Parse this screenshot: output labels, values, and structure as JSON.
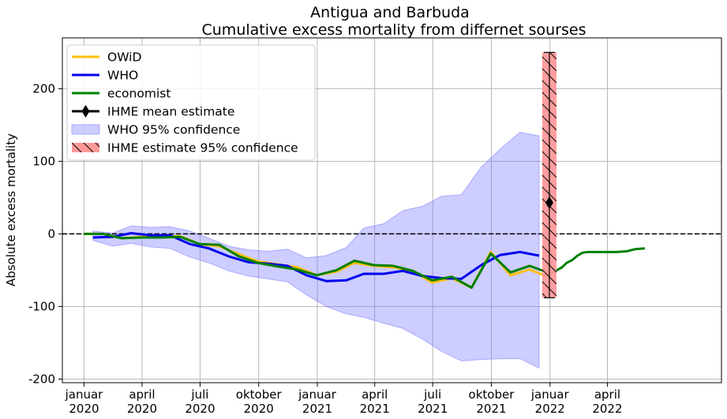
{
  "chart_data": {
    "type": "line",
    "title": "Antigua and Barbuda",
    "subtitle": "Cumulative excess mortality from differnet sourses",
    "ylabel": "Absolute excess mortality",
    "xlabel": "",
    "ylim": [
      -205,
      270
    ],
    "xlim": [
      "2019-11-28",
      "2022-09-27"
    ],
    "grid": true,
    "legend_position": "top-left",
    "x_ticks": [
      {
        "date": "2020-01-01",
        "line1": "januar",
        "line2": "2020"
      },
      {
        "date": "2020-04-01",
        "line1": "april",
        "line2": "2020"
      },
      {
        "date": "2020-07-01",
        "line1": "juli",
        "line2": "2020"
      },
      {
        "date": "2020-10-01",
        "line1": "oktober",
        "line2": "2020"
      },
      {
        "date": "2021-01-01",
        "line1": "januar",
        "line2": "2021"
      },
      {
        "date": "2021-04-01",
        "line1": "april",
        "line2": "2021"
      },
      {
        "date": "2021-07-01",
        "line1": "juli",
        "line2": "2021"
      },
      {
        "date": "2021-10-01",
        "line1": "oktober",
        "line2": "2021"
      },
      {
        "date": "2022-01-01",
        "line1": "januar",
        "line2": "2022"
      },
      {
        "date": "2022-04-01",
        "line1": "april",
        "line2": "2022"
      }
    ],
    "y_ticks": [
      -200,
      -100,
      0,
      100,
      200
    ],
    "zero_line": {
      "y": 0,
      "style": "dashed",
      "color": "#000000"
    },
    "series": [
      {
        "name": "OWiD",
        "color": "#ffbf00",
        "points": [
          [
            "2020-01-01",
            0
          ],
          [
            "2020-01-31",
            0
          ],
          [
            "2020-02-29",
            -6
          ],
          [
            "2020-03-31",
            -4
          ],
          [
            "2020-04-30",
            -4
          ],
          [
            "2020-05-31",
            -3
          ],
          [
            "2020-06-30",
            -14
          ],
          [
            "2020-07-31",
            -17
          ],
          [
            "2020-08-31",
            -28
          ],
          [
            "2020-09-30",
            -38
          ],
          [
            "2020-10-31",
            -42
          ],
          [
            "2020-11-30",
            -46
          ],
          [
            "2020-12-31",
            -57
          ],
          [
            "2021-01-31",
            -52
          ],
          [
            "2021-02-28",
            -40
          ],
          [
            "2021-03-31",
            -44
          ],
          [
            "2021-04-30",
            -46
          ],
          [
            "2021-05-31",
            -51
          ],
          [
            "2021-06-30",
            -67
          ],
          [
            "2021-07-31",
            -61
          ],
          [
            "2021-08-31",
            -74
          ],
          [
            "2021-09-30",
            -25
          ],
          [
            "2021-10-31",
            -57
          ],
          [
            "2021-11-30",
            -49
          ],
          [
            "2021-12-31",
            -60
          ]
        ]
      },
      {
        "name": "WHO",
        "color": "#0000ee",
        "points": [
          [
            "2020-01-15",
            -5
          ],
          [
            "2020-02-15",
            -4
          ],
          [
            "2020-03-15",
            1
          ],
          [
            "2020-04-15",
            -2
          ],
          [
            "2020-05-15",
            -2
          ],
          [
            "2020-06-15",
            -14
          ],
          [
            "2020-07-15",
            -20
          ],
          [
            "2020-08-15",
            -31
          ],
          [
            "2020-09-15",
            -39
          ],
          [
            "2020-10-15",
            -41
          ],
          [
            "2020-11-15",
            -44
          ],
          [
            "2020-12-15",
            -57
          ],
          [
            "2021-01-15",
            -65
          ],
          [
            "2021-02-15",
            -64
          ],
          [
            "2021-03-15",
            -55
          ],
          [
            "2021-04-15",
            -55
          ],
          [
            "2021-05-15",
            -51
          ],
          [
            "2021-06-15",
            -58
          ],
          [
            "2021-07-15",
            -61
          ],
          [
            "2021-08-15",
            -62
          ],
          [
            "2021-09-15",
            -43
          ],
          [
            "2021-10-15",
            -29
          ],
          [
            "2021-11-15",
            -25
          ],
          [
            "2021-12-15",
            -30
          ]
        ]
      },
      {
        "name": "economist",
        "color": "#008000",
        "points": [
          [
            "2020-01-01",
            0
          ],
          [
            "2020-01-31",
            0
          ],
          [
            "2020-02-29",
            -6
          ],
          [
            "2020-03-31",
            -5
          ],
          [
            "2020-04-30",
            -5
          ],
          [
            "2020-05-31",
            -4
          ],
          [
            "2020-06-30",
            -14
          ],
          [
            "2020-07-31",
            -15
          ],
          [
            "2020-08-31",
            -31
          ],
          [
            "2020-09-30",
            -40
          ],
          [
            "2020-10-31",
            -45
          ],
          [
            "2020-11-30",
            -49
          ],
          [
            "2020-12-31",
            -57
          ],
          [
            "2021-01-31",
            -50
          ],
          [
            "2021-02-28",
            -37
          ],
          [
            "2021-03-31",
            -43
          ],
          [
            "2021-04-30",
            -44
          ],
          [
            "2021-05-31",
            -51
          ],
          [
            "2021-06-30",
            -64
          ],
          [
            "2021-07-31",
            -59
          ],
          [
            "2021-08-31",
            -74
          ],
          [
            "2021-09-30",
            -27
          ],
          [
            "2021-10-31",
            -53
          ],
          [
            "2021-11-30",
            -44
          ],
          [
            "2021-12-31",
            -54
          ],
          [
            "2022-01-10",
            -51
          ],
          [
            "2022-01-20",
            -46
          ],
          [
            "2022-01-27",
            -40
          ],
          [
            "2022-02-05",
            -36
          ],
          [
            "2022-02-13",
            -30
          ],
          [
            "2022-02-21",
            -26
          ],
          [
            "2022-03-01",
            -25
          ],
          [
            "2022-03-15",
            -25
          ],
          [
            "2022-04-01",
            -25
          ],
          [
            "2022-04-15",
            -25
          ],
          [
            "2022-05-01",
            -24
          ],
          [
            "2022-05-15",
            -21
          ],
          [
            "2022-05-30",
            -20
          ]
        ]
      }
    ],
    "who_confidence": {
      "name": "WHO 95% confidence",
      "color": "#6f6fff",
      "upper": [
        [
          "2020-01-15",
          4
        ],
        [
          "2020-02-15",
          1
        ],
        [
          "2020-03-15",
          11
        ],
        [
          "2020-04-15",
          9
        ],
        [
          "2020-05-15",
          10
        ],
        [
          "2020-06-15",
          4
        ],
        [
          "2020-07-15",
          -6
        ],
        [
          "2020-08-15",
          -17
        ],
        [
          "2020-09-15",
          -22
        ],
        [
          "2020-10-15",
          -24
        ],
        [
          "2020-11-15",
          -21
        ],
        [
          "2020-12-15",
          -33
        ],
        [
          "2021-01-15",
          -30
        ],
        [
          "2021-02-15",
          -19
        ],
        [
          "2021-03-15",
          8
        ],
        [
          "2021-04-15",
          14
        ],
        [
          "2021-05-15",
          32
        ],
        [
          "2021-06-15",
          38
        ],
        [
          "2021-07-15",
          52
        ],
        [
          "2021-08-15",
          54
        ],
        [
          "2021-09-15",
          92
        ],
        [
          "2021-10-15",
          117
        ],
        [
          "2021-11-15",
          140
        ],
        [
          "2021-12-15",
          135
        ]
      ],
      "lower": [
        [
          "2020-01-15",
          -9
        ],
        [
          "2020-02-15",
          -17
        ],
        [
          "2020-03-15",
          -13
        ],
        [
          "2020-04-15",
          -18
        ],
        [
          "2020-05-15",
          -20
        ],
        [
          "2020-06-15",
          -32
        ],
        [
          "2020-07-15",
          -40
        ],
        [
          "2020-08-15",
          -51
        ],
        [
          "2020-09-15",
          -58
        ],
        [
          "2020-10-15",
          -62
        ],
        [
          "2020-11-15",
          -66
        ],
        [
          "2020-12-15",
          -84
        ],
        [
          "2021-01-15",
          -100
        ],
        [
          "2021-02-15",
          -110
        ],
        [
          "2021-03-15",
          -115
        ],
        [
          "2021-04-15",
          -123
        ],
        [
          "2021-05-15",
          -130
        ],
        [
          "2021-06-15",
          -145
        ],
        [
          "2021-07-15",
          -162
        ],
        [
          "2021-08-15",
          -175
        ],
        [
          "2021-09-15",
          -173
        ],
        [
          "2021-10-15",
          -172
        ],
        [
          "2021-11-15",
          -172
        ],
        [
          "2021-12-15",
          -185
        ]
      ]
    },
    "ihme": {
      "mean_label": "IHME mean estimate",
      "ci_label": " IHME estimate 95% confidence",
      "date": "2021-12-31",
      "mean": 43,
      "ci_lower": -88,
      "ci_upper": 250,
      "ci_color": "#ff9999",
      "ci_width_days": 12
    },
    "legend": [
      {
        "label": "OWiD",
        "kind": "line",
        "color": "#ffbf00"
      },
      {
        "label": "WHO",
        "kind": "line",
        "color": "#0000ee"
      },
      {
        "label": "economist",
        "kind": "line",
        "color": "#008000"
      },
      {
        "label": "IHME mean estimate",
        "kind": "errorbar",
        "color": "#000000"
      },
      {
        "label": "WHO 95% confidence",
        "kind": "area",
        "color": "#6f6fff"
      },
      {
        "label": " IHME estimate 95% confidence",
        "kind": "hatched",
        "color": "#ff9999"
      }
    ]
  }
}
